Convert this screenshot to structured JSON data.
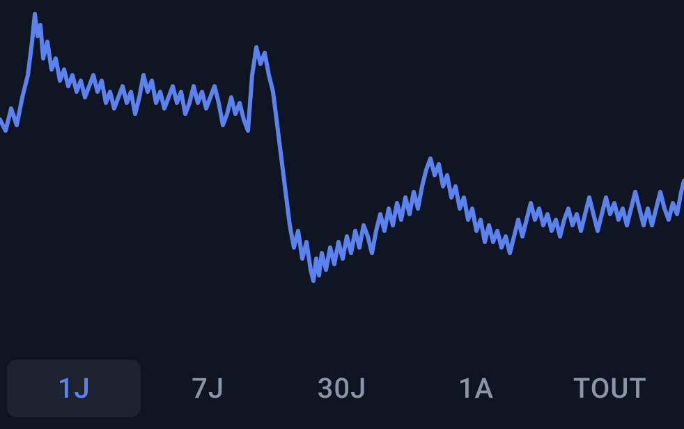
{
  "chart": {
    "type": "line",
    "background_color": "#0f1520",
    "line_color": "#5a82f0",
    "line_width": 6,
    "viewbox_w": 982,
    "viewbox_h": 500,
    "y_top_padding": 20,
    "y_bottom_padding": 80,
    "ylim": [
      0,
      100
    ],
    "points": [
      [
        0,
        62
      ],
      [
        8,
        58
      ],
      [
        16,
        66
      ],
      [
        24,
        60
      ],
      [
        32,
        70
      ],
      [
        40,
        78
      ],
      [
        46,
        90
      ],
      [
        50,
        100
      ],
      [
        54,
        92
      ],
      [
        58,
        96
      ],
      [
        62,
        84
      ],
      [
        68,
        90
      ],
      [
        74,
        80
      ],
      [
        80,
        84
      ],
      [
        86,
        76
      ],
      [
        92,
        80
      ],
      [
        98,
        74
      ],
      [
        104,
        78
      ],
      [
        110,
        72
      ],
      [
        116,
        76
      ],
      [
        122,
        70
      ],
      [
        128,
        74
      ],
      [
        134,
        78
      ],
      [
        140,
        72
      ],
      [
        146,
        76
      ],
      [
        152,
        68
      ],
      [
        158,
        72
      ],
      [
        164,
        66
      ],
      [
        170,
        70
      ],
      [
        176,
        74
      ],
      [
        182,
        68
      ],
      [
        188,
        72
      ],
      [
        194,
        64
      ],
      [
        200,
        70
      ],
      [
        206,
        78
      ],
      [
        212,
        72
      ],
      [
        218,
        76
      ],
      [
        224,
        68
      ],
      [
        230,
        72
      ],
      [
        236,
        66
      ],
      [
        242,
        70
      ],
      [
        248,
        74
      ],
      [
        254,
        68
      ],
      [
        260,
        72
      ],
      [
        266,
        64
      ],
      [
        272,
        68
      ],
      [
        278,
        74
      ],
      [
        284,
        68
      ],
      [
        290,
        72
      ],
      [
        296,
        66
      ],
      [
        302,
        70
      ],
      [
        308,
        74
      ],
      [
        314,
        68
      ],
      [
        320,
        60
      ],
      [
        326,
        64
      ],
      [
        332,
        70
      ],
      [
        338,
        64
      ],
      [
        344,
        68
      ],
      [
        350,
        62
      ],
      [
        356,
        58
      ],
      [
        362,
        78
      ],
      [
        368,
        88
      ],
      [
        374,
        82
      ],
      [
        380,
        86
      ],
      [
        386,
        78
      ],
      [
        392,
        72
      ],
      [
        398,
        60
      ],
      [
        404,
        48
      ],
      [
        410,
        36
      ],
      [
        416,
        24
      ],
      [
        422,
        16
      ],
      [
        428,
        22
      ],
      [
        434,
        12
      ],
      [
        440,
        18
      ],
      [
        446,
        8
      ],
      [
        450,
        4
      ],
      [
        454,
        12
      ],
      [
        458,
        6
      ],
      [
        462,
        14
      ],
      [
        468,
        8
      ],
      [
        474,
        16
      ],
      [
        480,
        10
      ],
      [
        486,
        18
      ],
      [
        492,
        12
      ],
      [
        498,
        20
      ],
      [
        504,
        14
      ],
      [
        510,
        22
      ],
      [
        516,
        16
      ],
      [
        522,
        24
      ],
      [
        528,
        20
      ],
      [
        534,
        14
      ],
      [
        540,
        22
      ],
      [
        546,
        28
      ],
      [
        552,
        22
      ],
      [
        558,
        30
      ],
      [
        564,
        24
      ],
      [
        570,
        32
      ],
      [
        576,
        26
      ],
      [
        582,
        34
      ],
      [
        588,
        28
      ],
      [
        594,
        36
      ],
      [
        600,
        30
      ],
      [
        606,
        38
      ],
      [
        612,
        44
      ],
      [
        618,
        48
      ],
      [
        624,
        42
      ],
      [
        630,
        46
      ],
      [
        636,
        38
      ],
      [
        642,
        42
      ],
      [
        648,
        34
      ],
      [
        654,
        38
      ],
      [
        660,
        30
      ],
      [
        666,
        34
      ],
      [
        672,
        26
      ],
      [
        678,
        30
      ],
      [
        684,
        22
      ],
      [
        690,
        26
      ],
      [
        696,
        18
      ],
      [
        702,
        24
      ],
      [
        708,
        18
      ],
      [
        714,
        22
      ],
      [
        720,
        16
      ],
      [
        726,
        20
      ],
      [
        732,
        14
      ],
      [
        738,
        20
      ],
      [
        744,
        26
      ],
      [
        750,
        20
      ],
      [
        756,
        26
      ],
      [
        762,
        32
      ],
      [
        768,
        26
      ],
      [
        774,
        30
      ],
      [
        780,
        24
      ],
      [
        786,
        28
      ],
      [
        792,
        22
      ],
      [
        798,
        26
      ],
      [
        804,
        20
      ],
      [
        810,
        26
      ],
      [
        816,
        30
      ],
      [
        822,
        24
      ],
      [
        828,
        28
      ],
      [
        834,
        22
      ],
      [
        840,
        28
      ],
      [
        846,
        34
      ],
      [
        852,
        28
      ],
      [
        858,
        22
      ],
      [
        864,
        28
      ],
      [
        870,
        34
      ],
      [
        876,
        28
      ],
      [
        882,
        32
      ],
      [
        888,
        26
      ],
      [
        894,
        30
      ],
      [
        900,
        24
      ],
      [
        906,
        30
      ],
      [
        912,
        36
      ],
      [
        918,
        30
      ],
      [
        924,
        24
      ],
      [
        930,
        30
      ],
      [
        936,
        24
      ],
      [
        942,
        30
      ],
      [
        948,
        36
      ],
      [
        954,
        30
      ],
      [
        960,
        26
      ],
      [
        966,
        32
      ],
      [
        972,
        28
      ],
      [
        978,
        36
      ],
      [
        982,
        40
      ]
    ]
  },
  "tabs": {
    "items": [
      {
        "label": "1J",
        "active": true
      },
      {
        "label": "7J",
        "active": false
      },
      {
        "label": "30J",
        "active": false
      },
      {
        "label": "1A",
        "active": false
      },
      {
        "label": "TOUT",
        "active": false
      }
    ],
    "active_bg": "#1c2230",
    "active_color": "#5a82f0",
    "inactive_color": "#8a95a8",
    "fontsize": 40,
    "fontweight": 500
  }
}
